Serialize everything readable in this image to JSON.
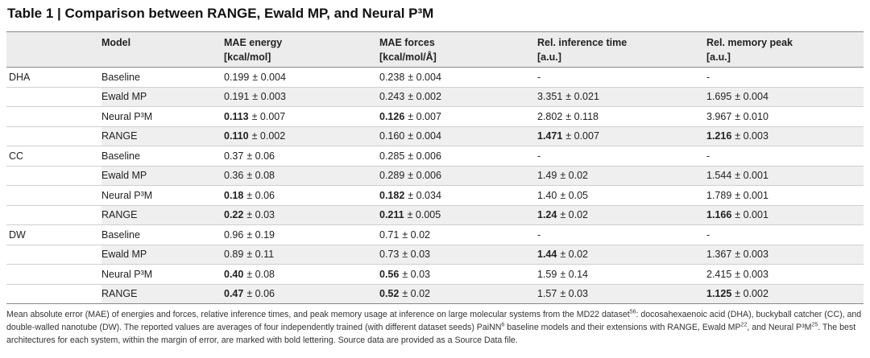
{
  "title": "Table 1 | Comparison between RANGE, Ewald MP, and Neural P³M",
  "table": {
    "headers": [
      {
        "lines": [
          "Model"
        ]
      },
      {
        "lines": [
          "MAE energy",
          "[kcal/mol]"
        ]
      },
      {
        "lines": [
          "MAE forces",
          "[kcal/mol/Å]"
        ]
      },
      {
        "lines": [
          "Rel. inference time",
          "[a.u.]"
        ]
      },
      {
        "lines": [
          "Rel. memory peak",
          "[a.u.]"
        ]
      }
    ],
    "groups": [
      {
        "system": "DHA",
        "rows": [
          {
            "model": "Baseline",
            "cells": [
              {
                "v": "0.199",
                "e": "± 0.004"
              },
              {
                "v": "0.238",
                "e": "± 0.004"
              },
              {
                "v": "-"
              },
              {
                "v": "-"
              }
            ]
          },
          {
            "model": "Ewald MP",
            "cells": [
              {
                "v": "0.191",
                "e": "± 0.003"
              },
              {
                "v": "0.243",
                "e": "± 0.002"
              },
              {
                "v": "3.351",
                "e": "± 0.021"
              },
              {
                "v": "1.695",
                "e": "± 0.004"
              }
            ]
          },
          {
            "model": "Neural P³M",
            "cells": [
              {
                "v": "0.113",
                "e": "± 0.007",
                "b": true
              },
              {
                "v": "0.126",
                "e": "± 0.007",
                "b": true
              },
              {
                "v": "2.802",
                "e": "± 0.118"
              },
              {
                "v": "3.967",
                "e": "± 0.010"
              }
            ]
          },
          {
            "model": "RANGE",
            "cells": [
              {
                "v": "0.110",
                "e": "± 0.002",
                "b": true
              },
              {
                "v": "0.160",
                "e": "± 0.004"
              },
              {
                "v": "1.471",
                "e": "± 0.007",
                "b": true
              },
              {
                "v": "1.216",
                "e": "± 0.003",
                "b": true
              }
            ]
          }
        ]
      },
      {
        "system": "CC",
        "rows": [
          {
            "model": "Baseline",
            "cells": [
              {
                "v": "0.37",
                "e": "± 0.06"
              },
              {
                "v": "0.285",
                "e": "± 0.006"
              },
              {
                "v": "-"
              },
              {
                "v": "-"
              }
            ]
          },
          {
            "model": "Ewald MP",
            "cells": [
              {
                "v": "0.36",
                "e": "± 0.08"
              },
              {
                "v": "0.289",
                "e": "± 0.006"
              },
              {
                "v": "1.49",
                "e": "± 0.02"
              },
              {
                "v": "1.544",
                "e": "± 0.001"
              }
            ]
          },
          {
            "model": "Neural P³M",
            "cells": [
              {
                "v": "0.18",
                "e": "± 0.06",
                "b": true
              },
              {
                "v": "0.182",
                "e": "± 0.034",
                "b": true
              },
              {
                "v": "1.40",
                "e": "± 0.05"
              },
              {
                "v": "1.789",
                "e": "± 0.001"
              }
            ]
          },
          {
            "model": "RANGE",
            "cells": [
              {
                "v": "0.22",
                "e": "± 0.03",
                "b": true
              },
              {
                "v": "0.211",
                "e": "± 0.005",
                "b": true
              },
              {
                "v": "1.24",
                "e": "± 0.02",
                "b": true
              },
              {
                "v": "1.166",
                "e": "± 0.001",
                "b": true
              }
            ]
          }
        ]
      },
      {
        "system": "DW",
        "rows": [
          {
            "model": "Baseline",
            "cells": [
              {
                "v": "0.96",
                "e": "± 0.19"
              },
              {
                "v": "0.71",
                "e": "± 0.02"
              },
              {
                "v": "-"
              },
              {
                "v": "-"
              }
            ]
          },
          {
            "model": "Ewald MP",
            "cells": [
              {
                "v": "0.89",
                "e": "± 0.11"
              },
              {
                "v": "0.73",
                "e": "± 0.03"
              },
              {
                "v": "1.44",
                "e": "± 0.02",
                "b": true
              },
              {
                "v": "1.367",
                "e": "± 0.003"
              }
            ]
          },
          {
            "model": "Neural P³M",
            "cells": [
              {
                "v": "0.40",
                "e": "± 0.08",
                "b": true
              },
              {
                "v": "0.56",
                "e": "± 0.03",
                "b": true
              },
              {
                "v": "1.59",
                "e": "± 0.14"
              },
              {
                "v": "2.415",
                "e": "± 0.003"
              }
            ]
          },
          {
            "model": "RANGE",
            "cells": [
              {
                "v": "0.47",
                "e": "± 0.06",
                "b": true
              },
              {
                "v": "0.52",
                "e": "± 0.02",
                "b": true
              },
              {
                "v": "1.57",
                "e": "± 0.03"
              },
              {
                "v": "1.125",
                "e": "± 0.002",
                "b": true
              }
            ]
          }
        ]
      }
    ]
  },
  "caption": [
    {
      "t": "Mean absolute error (MAE) of energies and forces, relative inference times, and peak memory usage at inference on large molecular systems from the MD22 dataset"
    },
    {
      "t": "56",
      "sup": true
    },
    {
      "t": ": docosahexaenoic acid (DHA), buckyball catcher (CC), and double-walled nanotube (DW). The reported values are averages of four independently trained (with different dataset seeds) PaiNN"
    },
    {
      "t": "6",
      "sup": true
    },
    {
      "t": " baseline models and their extensions with RANGE, Ewald MP"
    },
    {
      "t": "22",
      "sup": true
    },
    {
      "t": ", and Neural P³M"
    },
    {
      "t": "25",
      "sup": true
    },
    {
      "t": ". The best architectures for each system, within the margin of error, are marked with bold lettering. Source data are provided as a Source Data file."
    }
  ]
}
